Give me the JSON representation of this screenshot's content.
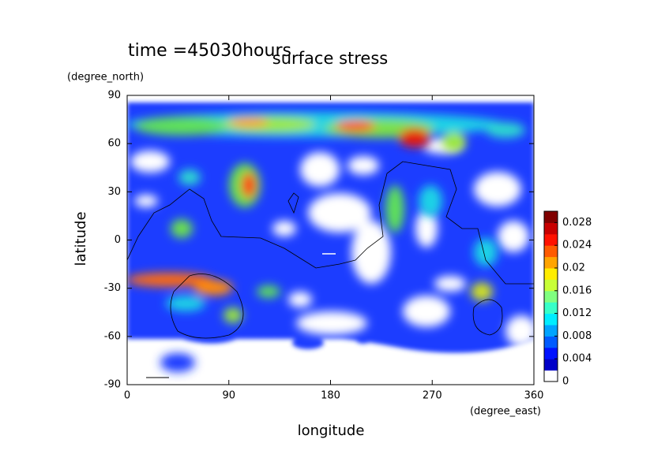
{
  "chart_data": {
    "type": "contour",
    "title": "surface stress",
    "subtitle": "time =45030hours",
    "x_label": "longitude",
    "y_label": "latitude",
    "x_unit": "(degree_east)",
    "y_unit": "(degree_north)",
    "xlim": [
      0,
      360
    ],
    "xticks": [
      0,
      90,
      180,
      270,
      360
    ],
    "ylim": [
      -90,
      90
    ],
    "yticks": [
      -90,
      -60,
      -30,
      0,
      30,
      60,
      90
    ],
    "colormap": "jet",
    "colorlim": [
      0,
      0.03
    ],
    "colorticks": [
      0,
      0.004,
      0.008,
      0.012,
      0.016,
      0.02,
      0.024,
      0.028
    ]
  }
}
